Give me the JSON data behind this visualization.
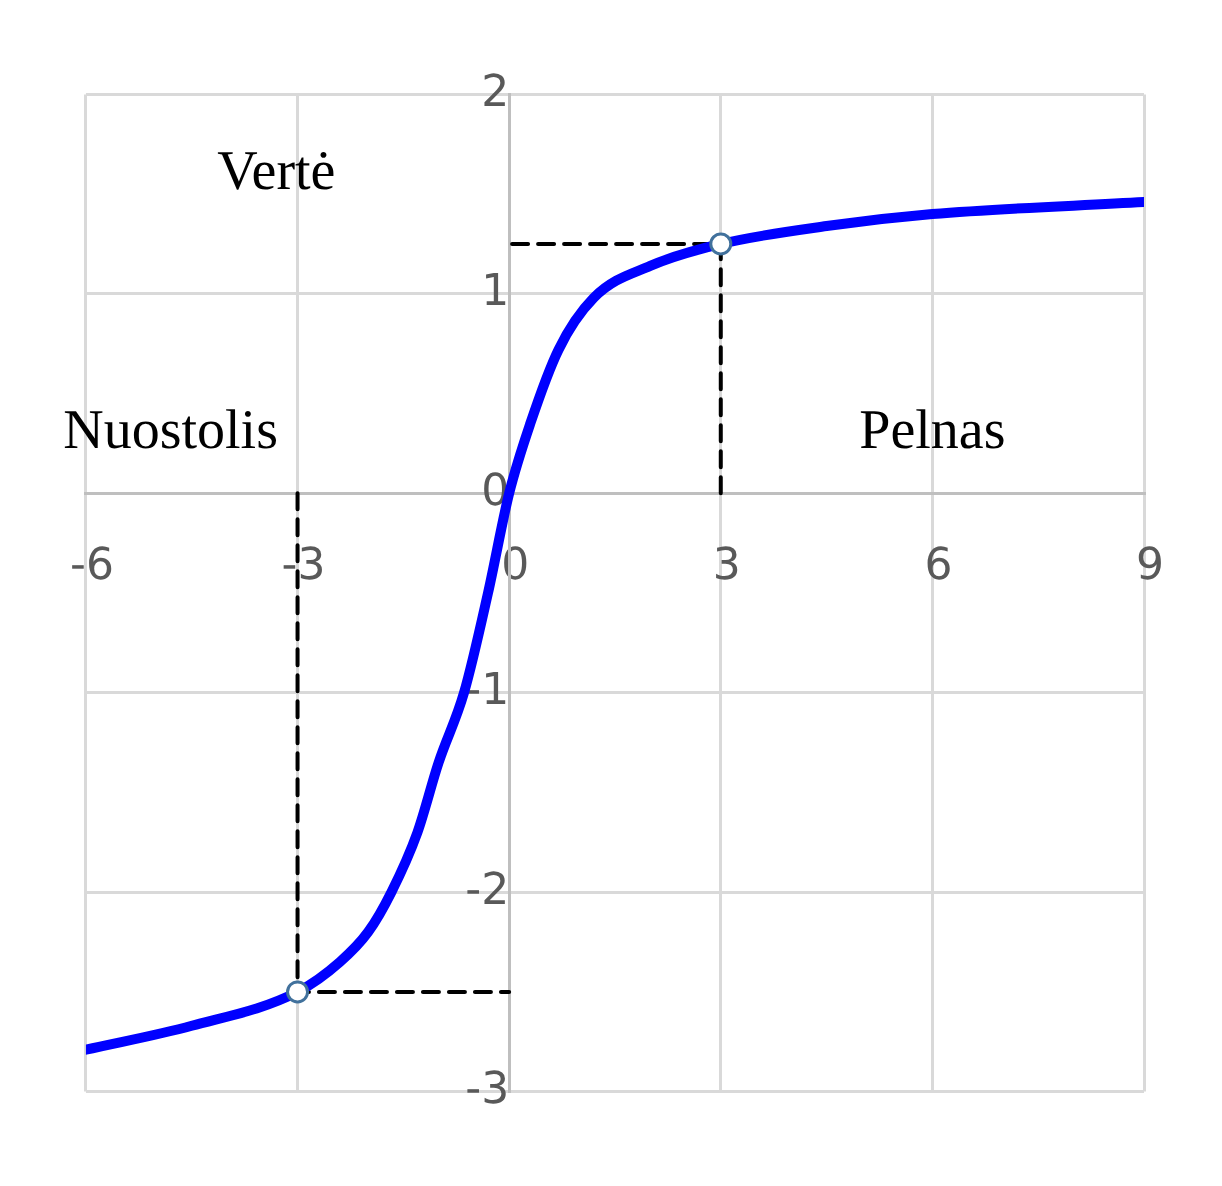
{
  "chart_data": {
    "type": "line",
    "xlim": [
      -6,
      9
    ],
    "ylim": [
      -3,
      2
    ],
    "xticks": [
      -6,
      -3,
      0,
      3,
      6,
      9
    ],
    "yticks": [
      -3,
      -2,
      -1,
      0,
      1,
      2
    ],
    "grid": true,
    "legend": false,
    "annotations": [
      "Vertė",
      "Nuostolis",
      "Pelnas"
    ],
    "series": [
      {
        "color": "#0000ff",
        "marker": "none",
        "x": [
          -6,
          -4.5,
          -3,
          -2.4,
          -2,
          -1.67,
          -1.3,
          -1,
          -0.64,
          -0.3,
          0,
          0.3,
          0.7,
          1.2,
          2,
          3,
          4.5,
          6,
          9
        ],
        "values": [
          -2.79,
          -2.67,
          -2.5,
          -2.35,
          -2.2,
          -2,
          -1.7,
          -1.35,
          -1,
          -0.5,
          0,
          0.35,
          0.72,
          0.98,
          1.14,
          1.25,
          1.34,
          1.4,
          1.46
        ]
      },
      {
        "type": "line",
        "color": "#000000",
        "marker": "none",
        "line_style": "dashed",
        "x": [
          3,
          3,
          0
        ],
        "values": [
          0,
          1.25,
          1.25
        ]
      },
      {
        "type": "line",
        "color": "#000000",
        "marker": "none",
        "line_style": "dashed",
        "x": [
          -3,
          -3,
          0
        ],
        "values": [
          0,
          -2.5,
          -2.5
        ]
      },
      {
        "type": "scatter",
        "color": "#41719c",
        "marker": "circle",
        "x": [
          3,
          -3
        ],
        "values": [
          1.25,
          -2.5
        ]
      }
    ]
  }
}
